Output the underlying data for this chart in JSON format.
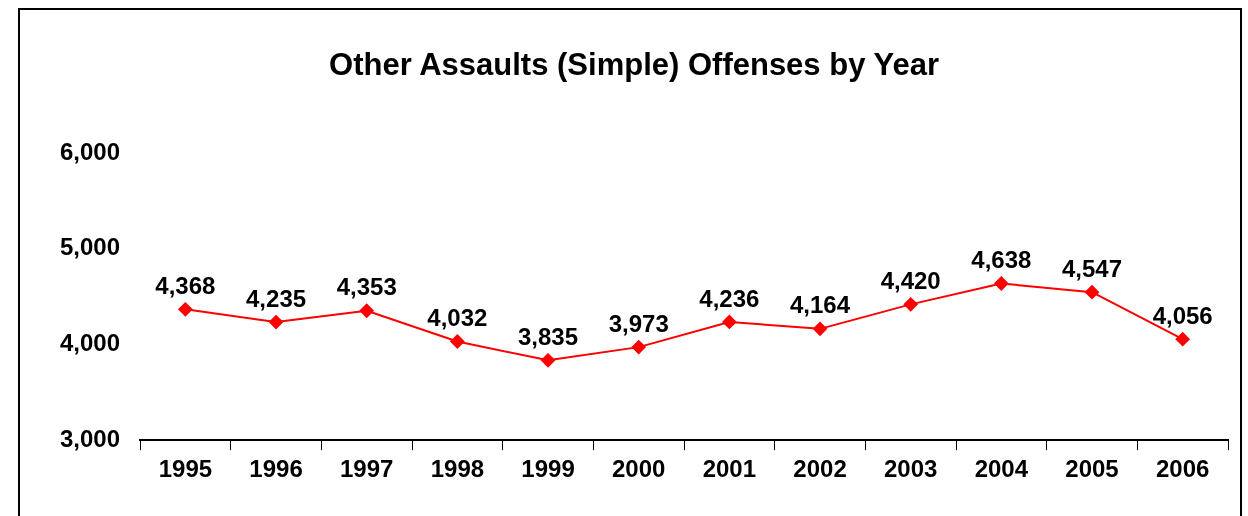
{
  "chart_data": {
    "type": "line",
    "title": "Other Assaults (Simple) Offenses by Year",
    "categories": [
      "1995",
      "1996",
      "1997",
      "1998",
      "1999",
      "2000",
      "2001",
      "2002",
      "2003",
      "2004",
      "2005",
      "2006"
    ],
    "series": [
      {
        "color": "#ff0000",
        "values": [
          4368,
          4235,
          4353,
          4032,
          3835,
          3973,
          4236,
          4164,
          4420,
          4638,
          4547,
          4056
        ],
        "value_labels": [
          "4,368",
          "4,235",
          "4,353",
          "4,032",
          "3,835",
          "3,973",
          "4,236",
          "4,164",
          "4,420",
          "4,638",
          "4,547",
          "4,056"
        ]
      }
    ],
    "ylim": [
      3000,
      6000
    ],
    "yticks": [
      {
        "value": 3000,
        "label": "3,000"
      },
      {
        "value": 4000,
        "label": "4,000"
      },
      {
        "value": 5000,
        "label": "5,000"
      },
      {
        "value": 6000,
        "label": "6,000"
      }
    ],
    "marker": "diamond"
  }
}
